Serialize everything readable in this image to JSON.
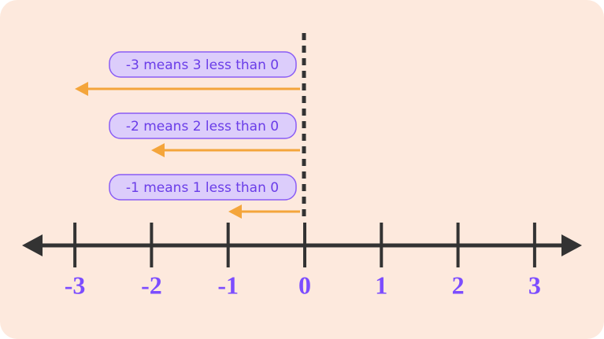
{
  "number_line": {
    "ticks": [
      -3,
      -2,
      -1,
      0,
      1,
      2,
      3
    ]
  },
  "annotations": [
    {
      "text": "-3 means 3 less than 0"
    },
    {
      "text": "-2 means 2 less than 0"
    },
    {
      "text": "-1 means 1 less than 0"
    }
  ]
}
